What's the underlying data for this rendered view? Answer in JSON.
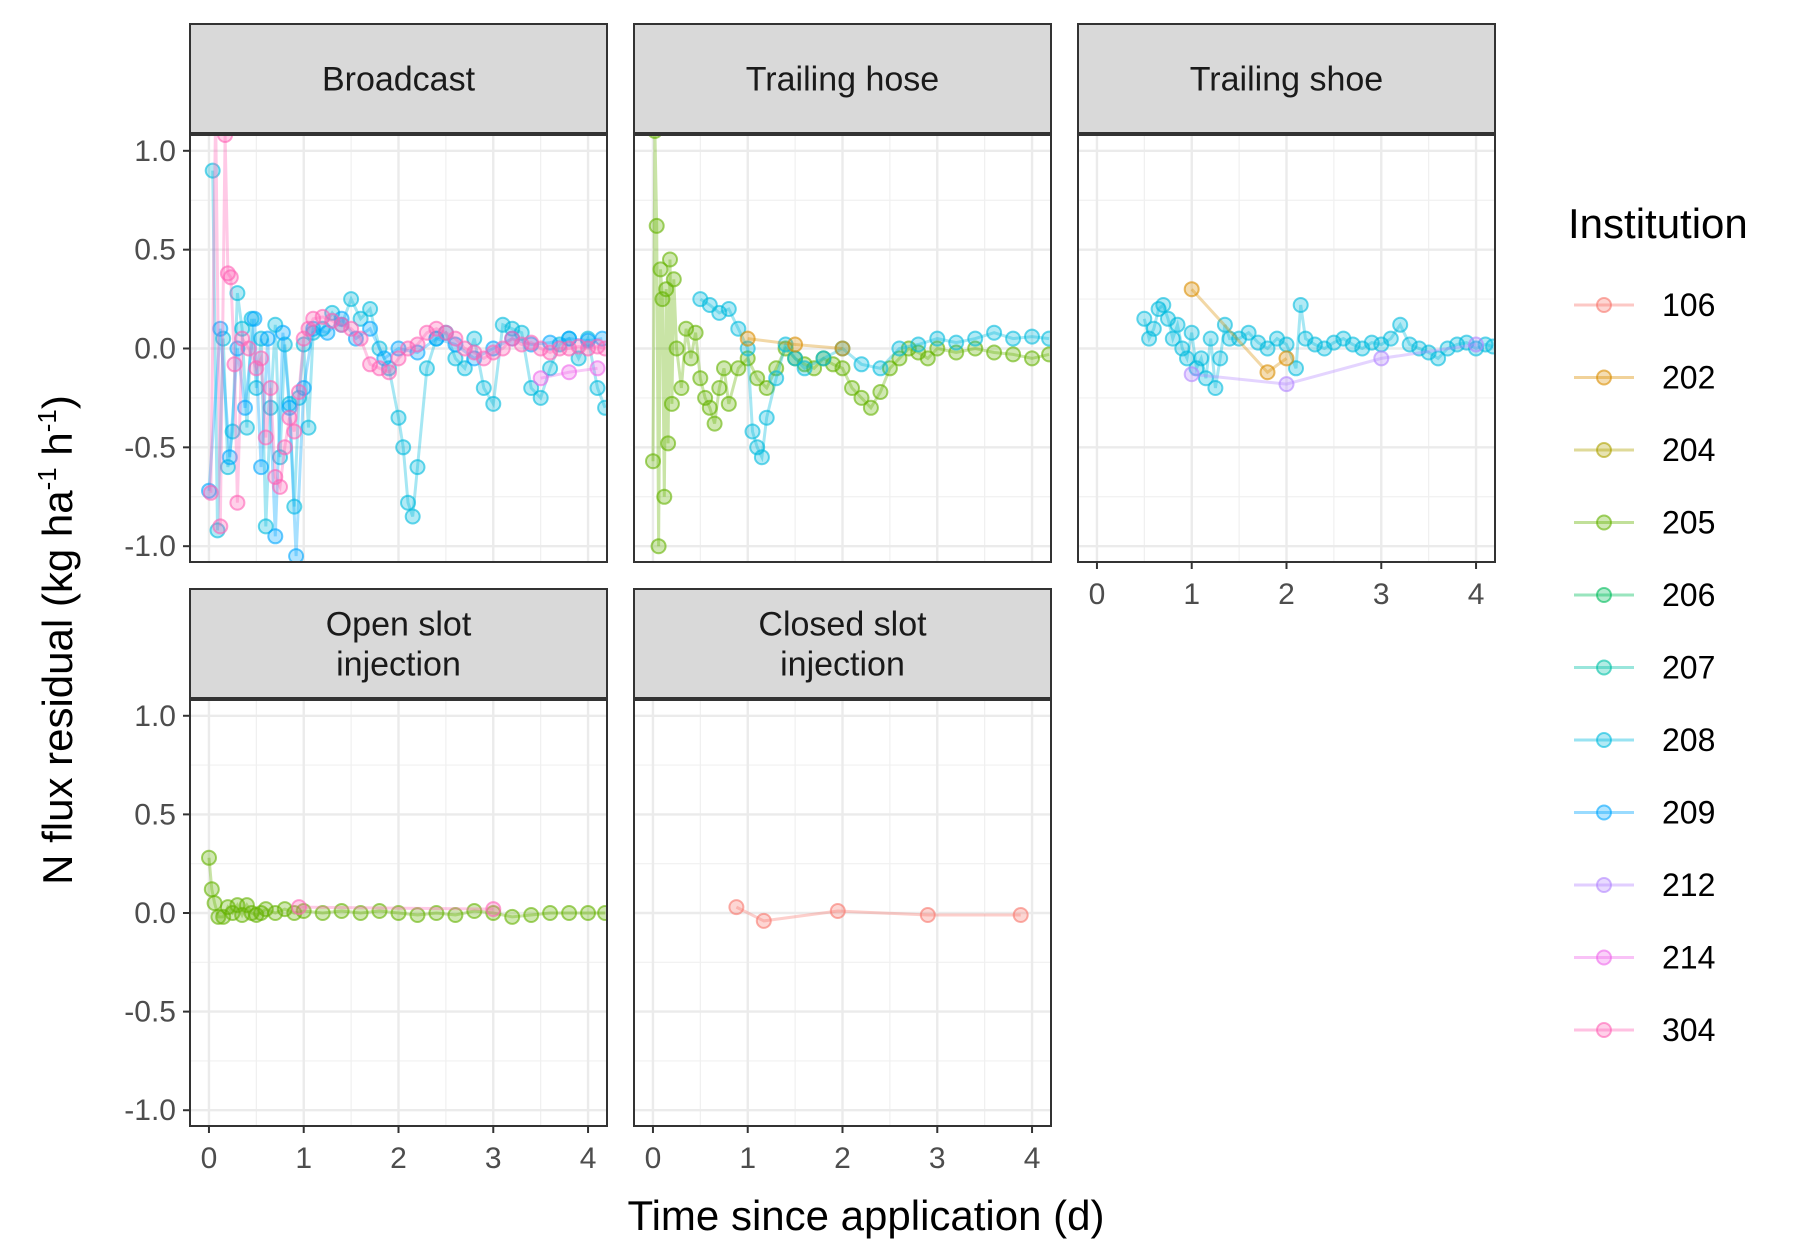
{
  "chart_data": {
    "type": "line",
    "xlabel": "Time since application (d)",
    "ylabel_main": "N flux residual (kg ha",
    "ylabel_sup1": "-1",
    "ylabel_mid": " h",
    "ylabel_sup2": "-1",
    "ylabel_end": ")",
    "xlim": [
      -0.2,
      4.2
    ],
    "ylim": [
      -1.08,
      1.08
    ],
    "x_ticks": [
      0,
      1,
      2,
      3,
      4
    ],
    "x_tick_labels": [
      "0",
      "1",
      "2",
      "3",
      "4"
    ],
    "y_ticks": [
      -1.0,
      -0.5,
      0.0,
      0.5,
      1.0
    ],
    "y_tick_labels": [
      "-1.0",
      "-0.5",
      "0.0",
      "0.5",
      "1.0"
    ],
    "grid": true,
    "legend": {
      "title": "Institution",
      "position": "right",
      "entries": [
        {
          "label": "106",
          "color": "#F8766D"
        },
        {
          "label": "202",
          "color": "#DB8E00"
        },
        {
          "label": "204",
          "color": "#AEA200"
        },
        {
          "label": "205",
          "color": "#64B200"
        },
        {
          "label": "206",
          "color": "#00BD5C"
        },
        {
          "label": "207",
          "color": "#00C1A7"
        },
        {
          "label": "208",
          "color": "#00BADE"
        },
        {
          "label": "209",
          "color": "#00A6FF"
        },
        {
          "label": "212",
          "color": "#B385FF"
        },
        {
          "label": "214",
          "color": "#EF67EB"
        },
        {
          "label": "304",
          "color": "#FF63B6"
        }
      ]
    },
    "panels": [
      {
        "title_lines": [
          "Broadcast"
        ],
        "series": [
          {
            "institution": "208",
            "x": [
              0.04,
              0.09,
              0.15,
              0.2,
              0.25,
              0.3,
              0.35,
              0.4,
              0.45,
              0.5,
              0.55,
              0.6,
              0.65,
              0.7,
              0.75,
              0.8,
              0.85,
              0.9,
              0.95,
              1.0,
              1.05,
              1.1,
              1.2,
              1.3,
              1.4,
              1.5,
              1.6,
              1.7,
              1.8,
              1.9,
              2.0,
              2.05,
              2.1,
              2.15,
              2.2,
              2.3,
              2.4,
              2.5,
              2.6,
              2.7,
              2.8,
              2.9,
              3.0,
              3.1,
              3.2,
              3.3,
              3.4,
              3.5,
              3.6,
              3.7,
              3.8,
              3.9,
              4.0,
              4.1,
              4.18
            ],
            "y": [
              0.9,
              -0.92,
              0.05,
              -0.6,
              -0.42,
              0.28,
              0.1,
              -0.4,
              0.15,
              -0.2,
              0.05,
              -0.9,
              -0.3,
              0.12,
              -0.55,
              0.02,
              -0.28,
              -0.8,
              -0.25,
              0.02,
              -0.4,
              0.08,
              0.1,
              0.18,
              0.12,
              0.25,
              0.15,
              0.2,
              0.0,
              -0.1,
              -0.35,
              -0.5,
              -0.78,
              -0.85,
              -0.6,
              -0.1,
              0.05,
              0.08,
              -0.05,
              -0.1,
              0.05,
              -0.2,
              -0.28,
              0.12,
              0.1,
              0.08,
              -0.2,
              -0.25,
              -0.1,
              0.02,
              0.05,
              -0.05,
              0.05,
              -0.2,
              -0.3
            ]
          },
          {
            "institution": "209",
            "x": [
              0.0,
              0.12,
              0.22,
              0.3,
              0.38,
              0.48,
              0.55,
              0.62,
              0.7,
              0.78,
              0.85,
              0.92,
              1.0,
              1.1,
              1.25,
              1.4,
              1.55,
              1.7,
              1.85,
              2.0,
              2.2,
              2.4,
              2.6,
              2.8,
              3.0,
              3.2,
              3.4,
              3.6,
              3.8,
              4.0,
              4.15
            ],
            "y": [
              -0.72,
              0.1,
              -0.55,
              0.0,
              -0.3,
              0.15,
              -0.6,
              0.05,
              -0.95,
              0.08,
              -0.3,
              -1.05,
              -0.2,
              0.1,
              0.08,
              0.15,
              0.05,
              0.1,
              -0.05,
              0.0,
              -0.02,
              0.05,
              0.02,
              -0.05,
              0.0,
              0.05,
              0.02,
              0.03,
              0.05,
              0.04,
              0.05
            ]
          },
          {
            "institution": "304",
            "x": [
              0.02,
              0.07,
              0.12,
              0.17,
              0.2,
              0.23,
              0.27,
              0.3,
              0.35,
              0.42,
              0.5,
              0.55,
              0.6,
              0.65,
              0.7,
              0.75,
              0.8,
              0.85,
              0.9,
              0.95,
              1.0,
              1.05,
              1.1,
              1.2,
              1.3,
              1.4,
              1.5,
              1.6,
              1.7,
              1.8,
              1.9,
              2.0,
              2.1,
              2.2,
              2.3,
              2.4,
              2.5,
              2.6,
              2.7,
              2.8,
              2.9,
              3.0,
              3.1,
              3.2,
              3.3,
              3.4,
              3.5,
              3.6,
              3.7,
              3.8,
              3.9,
              4.0,
              4.1,
              4.18
            ],
            "y": [
              -0.73,
              1.2,
              -0.9,
              1.08,
              0.38,
              0.36,
              -0.08,
              -0.78,
              0.05,
              0.0,
              -0.1,
              -0.05,
              -0.45,
              -0.2,
              -0.65,
              -0.7,
              -0.5,
              -0.35,
              -0.42,
              -0.22,
              0.05,
              0.1,
              0.15,
              0.16,
              0.14,
              0.12,
              0.1,
              0.05,
              -0.08,
              -0.1,
              -0.12,
              -0.05,
              0.0,
              0.02,
              0.08,
              0.1,
              0.08,
              0.05,
              0.0,
              -0.02,
              -0.05,
              -0.02,
              0.0,
              0.05,
              0.02,
              0.03,
              0.0,
              -0.02,
              0.0,
              0.0,
              0.01,
              0.0,
              0.01,
              0.0
            ]
          },
          {
            "institution": "214",
            "x": [
              3.5,
              3.8,
              4.1
            ],
            "y": [
              -0.15,
              -0.12,
              -0.1
            ]
          }
        ]
      },
      {
        "title_lines": [
          "Trailing hose"
        ],
        "series": [
          {
            "institution": "205",
            "x": [
              0.0,
              0.02,
              0.04,
              0.06,
              0.08,
              0.1,
              0.12,
              0.14,
              0.16,
              0.18,
              0.2,
              0.22,
              0.25,
              0.3,
              0.35,
              0.4,
              0.45,
              0.5,
              0.55,
              0.6,
              0.65,
              0.7,
              0.75,
              0.8,
              0.9,
              1.0,
              1.1,
              1.2,
              1.3,
              1.4,
              1.5,
              1.6,
              1.7,
              1.8,
              1.9,
              2.0,
              2.1,
              2.2,
              2.3,
              2.4,
              2.5,
              2.6,
              2.7,
              2.8,
              2.9,
              3.0,
              3.2,
              3.4,
              3.6,
              3.8,
              4.0,
              4.18
            ],
            "y": [
              -0.57,
              1.1,
              0.62,
              -1.0,
              0.4,
              0.25,
              -0.75,
              0.3,
              -0.48,
              0.45,
              -0.28,
              0.35,
              0.0,
              -0.2,
              0.1,
              -0.05,
              0.08,
              -0.15,
              -0.25,
              -0.3,
              -0.38,
              -0.2,
              -0.1,
              -0.28,
              -0.1,
              -0.05,
              -0.15,
              -0.2,
              -0.1,
              0.0,
              -0.05,
              -0.08,
              -0.1,
              -0.05,
              -0.08,
              -0.1,
              -0.2,
              -0.25,
              -0.3,
              -0.22,
              -0.1,
              -0.05,
              0.0,
              -0.02,
              -0.05,
              0.0,
              -0.02,
              0.0,
              -0.02,
              -0.03,
              -0.05,
              -0.03
            ]
          },
          {
            "institution": "208",
            "x": [
              0.5,
              0.6,
              0.7,
              0.8,
              0.9,
              1.0,
              1.05,
              1.1,
              1.15,
              1.2,
              1.3,
              1.4,
              1.5,
              1.6,
              1.8,
              2.0,
              2.2,
              2.4,
              2.6,
              2.8,
              3.0,
              3.2,
              3.4,
              3.6,
              3.8,
              4.0,
              4.18
            ],
            "y": [
              0.25,
              0.22,
              0.18,
              0.2,
              0.1,
              0.0,
              -0.42,
              -0.5,
              -0.55,
              -0.35,
              -0.15,
              0.02,
              -0.05,
              -0.1,
              -0.05,
              0.0,
              -0.08,
              -0.1,
              0.0,
              0.02,
              0.05,
              0.03,
              0.05,
              0.08,
              0.05,
              0.06,
              0.05
            ]
          },
          {
            "institution": "202",
            "x": [
              1.0,
              1.5,
              2.0
            ],
            "y": [
              0.05,
              0.02,
              0.0
            ]
          }
        ]
      },
      {
        "title_lines": [
          "Trailing shoe"
        ],
        "series": [
          {
            "institution": "208",
            "x": [
              0.5,
              0.55,
              0.6,
              0.65,
              0.7,
              0.75,
              0.8,
              0.85,
              0.9,
              0.95,
              1.0,
              1.05,
              1.1,
              1.15,
              1.2,
              1.25,
              1.3,
              1.35,
              1.4,
              1.5,
              1.6,
              1.7,
              1.8,
              1.9,
              2.0,
              2.1,
              2.15,
              2.2,
              2.3,
              2.4,
              2.5,
              2.6,
              2.7,
              2.8,
              2.9,
              3.0,
              3.1,
              3.2,
              3.3,
              3.4,
              3.5,
              3.6,
              3.7,
              3.8,
              3.9,
              4.0,
              4.1,
              4.18
            ],
            "y": [
              0.15,
              0.05,
              0.1,
              0.2,
              0.22,
              0.15,
              0.05,
              0.12,
              0.0,
              -0.05,
              0.08,
              -0.1,
              -0.05,
              -0.15,
              0.05,
              -0.2,
              -0.05,
              0.12,
              0.05,
              0.05,
              0.08,
              0.03,
              0.0,
              0.05,
              0.02,
              -0.1,
              0.22,
              0.05,
              0.02,
              0.0,
              0.03,
              0.05,
              0.02,
              0.0,
              0.03,
              0.02,
              0.05,
              0.12,
              0.02,
              0.0,
              -0.02,
              -0.05,
              0.0,
              0.02,
              0.03,
              0.0,
              0.02,
              0.01
            ]
          },
          {
            "institution": "202",
            "x": [
              1.0,
              1.8,
              2.0
            ],
            "y": [
              0.3,
              -0.12,
              -0.05
            ]
          },
          {
            "institution": "212",
            "x": [
              1.0,
              2.0,
              3.0,
              4.0
            ],
            "y": [
              -0.13,
              -0.18,
              -0.05,
              0.02
            ]
          }
        ]
      },
      {
        "title_lines": [
          "Open slot",
          "injection"
        ],
        "series": [
          {
            "institution": "205",
            "x": [
              0.0,
              0.03,
              0.06,
              0.1,
              0.15,
              0.2,
              0.25,
              0.3,
              0.35,
              0.4,
              0.45,
              0.5,
              0.55,
              0.6,
              0.7,
              0.8,
              0.9,
              1.0,
              1.2,
              1.4,
              1.6,
              1.8,
              2.0,
              2.2,
              2.4,
              2.6,
              2.8,
              3.0,
              3.2,
              3.4,
              3.6,
              3.8,
              4.0,
              4.18
            ],
            "y": [
              0.28,
              0.12,
              0.05,
              -0.02,
              -0.02,
              0.03,
              0.0,
              0.04,
              -0.01,
              0.04,
              0.0,
              -0.01,
              0.0,
              0.02,
              0.0,
              0.02,
              0.0,
              0.01,
              0.0,
              0.01,
              0.0,
              0.01,
              0.0,
              -0.01,
              0.0,
              -0.01,
              0.01,
              0.0,
              -0.02,
              -0.01,
              0.0,
              0.0,
              0.0,
              0.0
            ]
          },
          {
            "institution": "304",
            "x": [
              0.95,
              3.0
            ],
            "y": [
              0.03,
              0.02
            ]
          }
        ]
      },
      {
        "title_lines": [
          "Closed slot",
          "injection"
        ],
        "series": [
          {
            "institution": "106",
            "x": [
              0.88,
              1.17,
              1.95,
              2.9,
              3.88
            ],
            "y": [
              0.03,
              -0.04,
              0.01,
              -0.01,
              -0.01
            ]
          }
        ]
      }
    ]
  }
}
